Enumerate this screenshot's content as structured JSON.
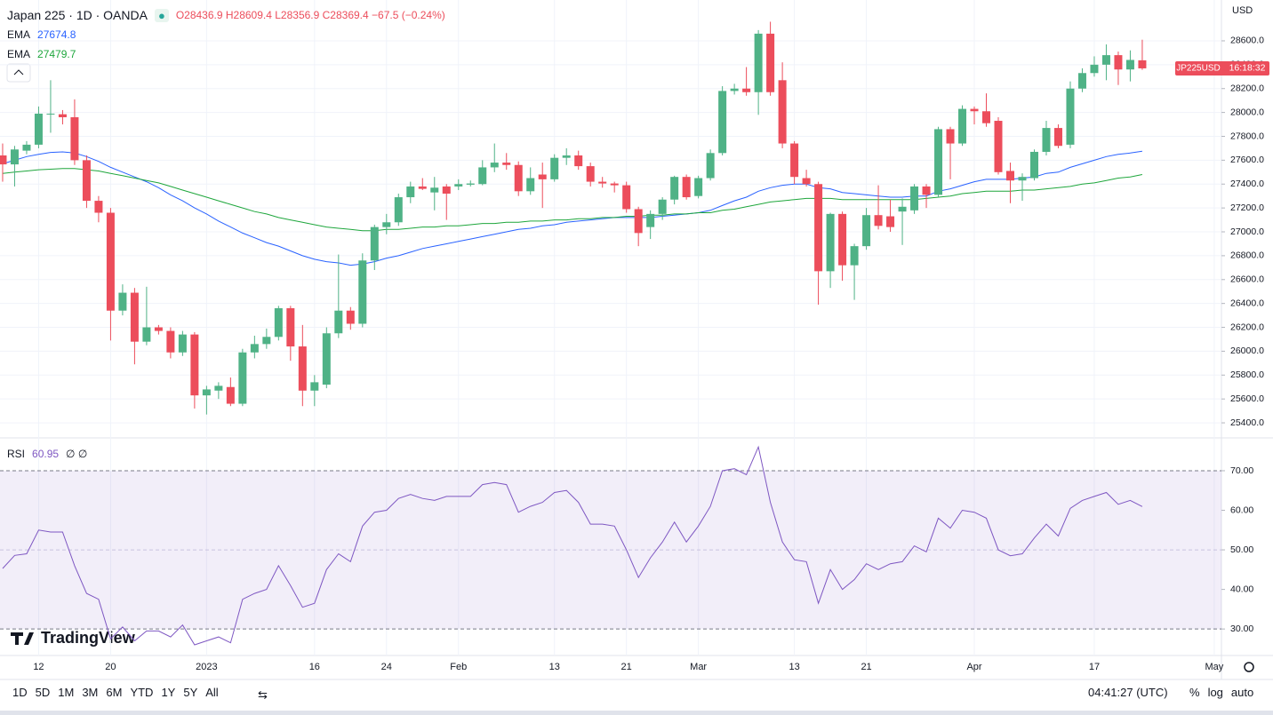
{
  "header": {
    "title": "Japan 225 · 1D · OANDA",
    "ohlc": "O28436.9 H28609.4 L28356.9 C28369.4 −67.5 (−0.24%)",
    "ema_label": "EMA",
    "currency": "USD",
    "symbol_tag": "JP225USD",
    "countdown": "16:18:32",
    "rsi_label": "RSI",
    "rsi_extra": "∅ ∅",
    "logo": "TradingView"
  },
  "toolbar": {
    "ranges": [
      "1D",
      "5D",
      "1M",
      "3M",
      "6M",
      "YTD",
      "1Y",
      "5Y",
      "All"
    ],
    "clock": "04:41:27 (UTC)",
    "options": [
      "%",
      "log",
      "auto"
    ]
  },
  "chart_data": [
    {
      "type": "candlestick",
      "up_color": "#4fb286",
      "down_color": "#ec4d5b",
      "grid": true,
      "xlim": [
        -0.22,
        101.6
      ],
      "ylim": [
        25274,
        28942
      ],
      "xticks": [
        {
          "value": 3,
          "label": "12"
        },
        {
          "value": 9,
          "label": "20"
        },
        {
          "value": 17,
          "label": "2023"
        },
        {
          "value": 26,
          "label": "16"
        },
        {
          "value": 32,
          "label": "24"
        },
        {
          "value": 38,
          "label": "Feb"
        },
        {
          "value": 46,
          "label": "13"
        },
        {
          "value": 52,
          "label": "21"
        },
        {
          "value": 58,
          "label": "Mar"
        },
        {
          "value": 66,
          "label": "13"
        },
        {
          "value": 72,
          "label": "21"
        },
        {
          "value": 81,
          "label": "Apr"
        },
        {
          "value": 91,
          "label": "17"
        },
        {
          "value": 101,
          "label": "May"
        }
      ],
      "yticks": [
        {
          "value": 25400,
          "label": "25400.0"
        },
        {
          "value": 25600,
          "label": "25600.0"
        },
        {
          "value": 25800,
          "label": "25800.0"
        },
        {
          "value": 26000,
          "label": "26000.0"
        },
        {
          "value": 26200,
          "label": "26200.0"
        },
        {
          "value": 26400,
          "label": "26400.0"
        },
        {
          "value": 26600,
          "label": "26600.0"
        },
        {
          "value": 26800,
          "label": "26800.0"
        },
        {
          "value": 27000,
          "label": "27000.0"
        },
        {
          "value": 27200,
          "label": "27200.0"
        },
        {
          "value": 27400,
          "label": "27400.0"
        },
        {
          "value": 27600,
          "label": "27600.0"
        },
        {
          "value": 27800,
          "label": "27800.0"
        },
        {
          "value": 28000,
          "label": "28000.0"
        },
        {
          "value": 28200,
          "label": "28200.0"
        },
        {
          "value": 28400,
          "label": "28400.0"
        },
        {
          "value": 28600,
          "label": "28600.0"
        }
      ],
      "open": [
        27640,
        27565,
        27680,
        27730,
        27985,
        27985,
        27960,
        27600,
        27260,
        27160,
        26340,
        26490,
        26080,
        26200,
        26170,
        25990,
        26140,
        25630,
        25670,
        25700,
        25560,
        25990,
        26060,
        26120,
        26360,
        26040,
        25670,
        25720,
        26150,
        26340,
        26230,
        26760,
        27040,
        27080,
        27290,
        27380,
        27330,
        27380,
        27380,
        27395,
        27400,
        27540,
        27580,
        27560,
        27340,
        27480,
        27440,
        27620,
        27640,
        27550,
        27420,
        27405,
        27390,
        27190,
        27040,
        27150,
        27270,
        27460,
        27300,
        27450,
        27660,
        28180,
        28200,
        28170,
        28660,
        28270,
        27740,
        27450,
        27400,
        26670,
        27150,
        26720,
        26880,
        27140,
        27130,
        27170,
        27180,
        27380,
        27310,
        27860,
        27740,
        28030,
        28010,
        27930,
        27510,
        27430,
        27450,
        27670,
        27870,
        27730,
        28200,
        28330,
        28400,
        28480,
        28360,
        28436.9
      ],
      "high": [
        27740,
        27720,
        27760,
        28050,
        28270,
        28020,
        28110,
        27640,
        27300,
        27200,
        26560,
        26530,
        26540,
        26220,
        26200,
        26170,
        26160,
        25710,
        25740,
        25780,
        26020,
        26130,
        26190,
        26380,
        26380,
        26220,
        25800,
        26200,
        26810,
        26370,
        26820,
        27060,
        27150,
        27320,
        27420,
        27450,
        27460,
        27400,
        27440,
        27430,
        27600,
        27740,
        27660,
        27590,
        27540,
        27580,
        27650,
        27700,
        27680,
        27580,
        27460,
        27420,
        27420,
        27210,
        27180,
        27290,
        27470,
        27480,
        27470,
        27690,
        28220,
        28240,
        28380,
        28690,
        28760,
        28420,
        27760,
        27520,
        27420,
        27160,
        27170,
        26900,
        27200,
        27390,
        27270,
        27280,
        27400,
        27400,
        27880,
        27880,
        28060,
        28050,
        28160,
        27960,
        27580,
        27490,
        27690,
        27930,
        27900,
        28260,
        28370,
        28470,
        28570,
        28510,
        28520,
        28609.4
      ],
      "low": [
        27420,
        27380,
        27650,
        27700,
        27830,
        27900,
        27560,
        27200,
        27080,
        26090,
        26300,
        25890,
        26050,
        26140,
        25940,
        25960,
        25520,
        25470,
        25600,
        25540,
        25540,
        25940,
        26020,
        26090,
        25920,
        25540,
        25540,
        25690,
        26110,
        26180,
        26200,
        26680,
        26980,
        27050,
        27240,
        27350,
        27180,
        27100,
        27350,
        27380,
        27390,
        27500,
        27520,
        27300,
        27310,
        27200,
        27420,
        27560,
        27520,
        27380,
        27370,
        27330,
        27160,
        26880,
        26940,
        27100,
        27230,
        27270,
        27280,
        27430,
        27640,
        28150,
        28140,
        27980,
        28140,
        27700,
        27400,
        27380,
        26390,
        26530,
        26590,
        26430,
        26850,
        27020,
        27000,
        26890,
        27150,
        27200,
        27290,
        27440,
        27720,
        27900,
        27880,
        27480,
        27240,
        27260,
        27430,
        27640,
        27700,
        27700,
        28170,
        28300,
        28270,
        28230,
        28260,
        28356.9
      ],
      "close": [
        27565,
        27690,
        27730,
        27990,
        27990,
        27960,
        27600,
        27260,
        27160,
        26340,
        26490,
        26080,
        26200,
        26170,
        25990,
        26140,
        25630,
        25680,
        25710,
        25560,
        25990,
        26060,
        26120,
        26360,
        26040,
        25670,
        25740,
        26150,
        26340,
        26230,
        26760,
        27040,
        27080,
        27290,
        27380,
        27360,
        27370,
        27320,
        27400,
        27405,
        27540,
        27580,
        27560,
        27340,
        27450,
        27440,
        27620,
        27640,
        27550,
        27420,
        27405,
        27390,
        27190,
        26990,
        27150,
        27270,
        27460,
        27290,
        27450,
        27660,
        28180,
        28200,
        28170,
        28660,
        28170,
        27740,
        27460,
        27400,
        26670,
        27150,
        26720,
        26880,
        27140,
        27050,
        27040,
        27210,
        27380,
        27310,
        27860,
        27740,
        28030,
        28010,
        27910,
        27500,
        27430,
        27460,
        27670,
        27870,
        27720,
        28200,
        28330,
        28400,
        28480,
        28360,
        28440,
        28369.4
      ],
      "series": [
        {
          "name": "EMA",
          "color": "#2962ff",
          "values": [
            27570,
            27600,
            27630,
            27650,
            27665,
            27670,
            27660,
            27630,
            27590,
            27540,
            27500,
            27460,
            27420,
            27370,
            27310,
            27260,
            27200,
            27150,
            27090,
            27040,
            26990,
            26950,
            26910,
            26880,
            26840,
            26800,
            26770,
            26750,
            26740,
            26720,
            26730,
            26750,
            26780,
            26800,
            26830,
            26860,
            26880,
            26900,
            26920,
            26940,
            26960,
            26980,
            27000,
            27020,
            27030,
            27050,
            27060,
            27080,
            27090,
            27100,
            27110,
            27120,
            27120,
            27120,
            27120,
            27130,
            27140,
            27150,
            27160,
            27180,
            27220,
            27260,
            27290,
            27340,
            27370,
            27390,
            27400,
            27400,
            27370,
            27360,
            27330,
            27320,
            27310,
            27300,
            27290,
            27290,
            27300,
            27300,
            27340,
            27360,
            27390,
            27420,
            27440,
            27440,
            27440,
            27450,
            27460,
            27490,
            27500,
            27540,
            27570,
            27600,
            27630,
            27650,
            27660,
            27674.8
          ]
        },
        {
          "name": "EMA",
          "color": "#1ea63c",
          "values": [
            27490,
            27500,
            27510,
            27520,
            27525,
            27530,
            27530,
            27520,
            27510,
            27490,
            27470,
            27450,
            27430,
            27410,
            27380,
            27350,
            27320,
            27290,
            27260,
            27230,
            27200,
            27170,
            27150,
            27120,
            27100,
            27080,
            27060,
            27040,
            27030,
            27020,
            27010,
            27010,
            27020,
            27020,
            27030,
            27040,
            27040,
            27050,
            27050,
            27060,
            27070,
            27070,
            27080,
            27080,
            27090,
            27090,
            27100,
            27100,
            27110,
            27110,
            27120,
            27120,
            27130,
            27130,
            27140,
            27140,
            27150,
            27150,
            27160,
            27160,
            27180,
            27190,
            27210,
            27230,
            27250,
            27260,
            27270,
            27280,
            27280,
            27280,
            27270,
            27270,
            27270,
            27270,
            27270,
            27270,
            27270,
            27280,
            27290,
            27300,
            27320,
            27330,
            27340,
            27340,
            27340,
            27350,
            27350,
            27360,
            27370,
            27380,
            27400,
            27410,
            27430,
            27450,
            27460,
            27479.7
          ]
        }
      ]
    },
    {
      "type": "line",
      "xlim": [
        -0.22,
        101.6
      ],
      "ylim": [
        23.3,
        78.3
      ],
      "band": [
        30,
        70
      ],
      "midline": 50,
      "band_color": "#7e57c2",
      "yticks": [
        {
          "value": 30,
          "label": "30.00"
        },
        {
          "value": 40,
          "label": "40.00"
        },
        {
          "value": 50,
          "label": "50.00"
        },
        {
          "value": 60,
          "label": "60.00"
        },
        {
          "value": 70,
          "label": "70.00"
        }
      ],
      "series": [
        {
          "name": "RSI",
          "color": "#7e57c2",
          "values": [
            45.3,
            48.6,
            49,
            55,
            54.5,
            54.5,
            46,
            39,
            37.5,
            27.5,
            30.5,
            27,
            29.5,
            29.5,
            28,
            31,
            26,
            27,
            28,
            26.5,
            37.5,
            39,
            40,
            46,
            41,
            35.5,
            36.5,
            45,
            49,
            47,
            56,
            59.5,
            60,
            63,
            64,
            63,
            62.5,
            63.5,
            63.5,
            63.5,
            66.5,
            67,
            66.5,
            59.5,
            61,
            62,
            64.5,
            65,
            62,
            56.5,
            56.5,
            56,
            50,
            43,
            48,
            52,
            57,
            52,
            56,
            61,
            70,
            70.5,
            69,
            76,
            62,
            52,
            47.5,
            47,
            36.5,
            45,
            40,
            42.5,
            46.5,
            45,
            46.5,
            47,
            51,
            49.5,
            58,
            55.5,
            60,
            59.5,
            58,
            50,
            48.5,
            49,
            53,
            56.5,
            53.5,
            60.5,
            62.5,
            63.5,
            64.5,
            61.5,
            62.5,
            60.95
          ]
        }
      ]
    }
  ]
}
